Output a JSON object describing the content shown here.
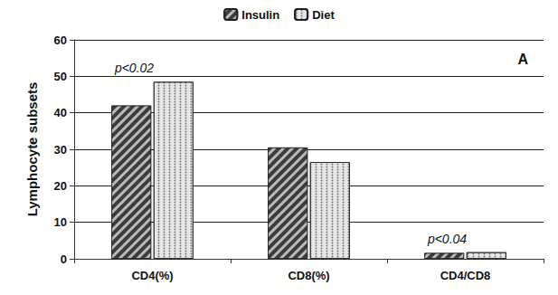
{
  "chart_data": {
    "type": "bar",
    "title": "A",
    "y_label": "Lymphocyte subsets",
    "categories": [
      "CD4(%)",
      "CD8(%)",
      "CD4/CD8"
    ],
    "series": [
      {
        "name": "Insulin",
        "color": "#3c3c3c",
        "values": [
          42,
          30.5,
          1.6
        ]
      },
      {
        "name": "Diet",
        "color": "#e6e6e6",
        "values": [
          48.5,
          26.5,
          1.8
        ]
      }
    ],
    "annotations": [
      {
        "text": "p<0.02",
        "category": "CD4(%)"
      },
      {
        "text": "p<0.04",
        "category": "CD4/CD8"
      }
    ],
    "ylim": [
      0,
      60
    ],
    "yticks": [
      0,
      10,
      20,
      30,
      40,
      50,
      60
    ],
    "grid": true,
    "legend": "top"
  }
}
